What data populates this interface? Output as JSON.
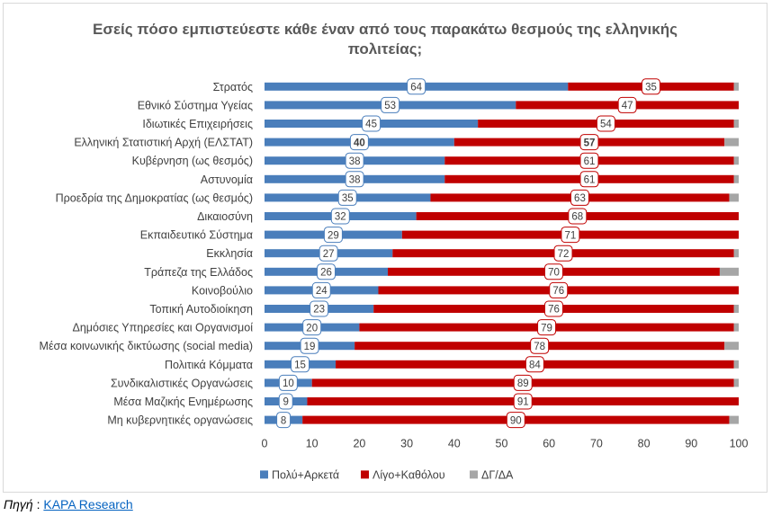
{
  "chart_data": {
    "type": "bar",
    "orientation": "horizontal",
    "stacked": true,
    "title": "Εσείς πόσο εμπιστεύεστε κάθε έναν από τους παρακάτω θεσμούς της ελληνικής πολιτείας;",
    "title_lines": [
      "Εσείς πόσο εμπιστεύεστε κάθε έναν από τους παρακάτω θεσμούς της ελληνικής",
      "πολιτείας;"
    ],
    "xlim": [
      0,
      100
    ],
    "xticks": [
      0,
      10,
      20,
      30,
      40,
      50,
      60,
      70,
      80,
      90,
      100
    ],
    "grid": false,
    "legend_position": "bottom",
    "categories": [
      "Στρατός",
      "Εθνικό Σύστημα Υγείας",
      "Ιδιωτικές Επιχειρήσεις",
      "Ελληνική Στατιστική Αρχή (ΕΛΣΤΑΤ)",
      "Κυβέρνηση (ως θεσμός)",
      "Αστυνομία",
      "Προεδρία της Δημοκρατίας (ως θεσμός)",
      "Δικαιοσύνη",
      "Εκπαιδευτικό Σύστημα",
      "Εκκλησία",
      "Τράπεζα της Ελλάδος",
      "Κοινοβούλιο",
      "Τοπική Αυτοδιοίκηση",
      "Δημόσιες Υπηρεσίες και Οργανισμοί",
      "Μέσα κοινωνικής δικτύωσης (social media)",
      "Πολιτικά Κόμματα",
      "Συνδικαλιστικές Οργανώσεις",
      "Μέσα Μαζικής Ενημέρωσης",
      "Μη κυβερνητικές οργανώσεις"
    ],
    "highlighted_category_index": 3,
    "series": [
      {
        "name": "Πολύ+Αρκετά",
        "color": "#4a7ebb",
        "values": [
          64,
          53,
          45,
          40,
          38,
          38,
          35,
          32,
          29,
          27,
          26,
          24,
          23,
          20,
          19,
          15,
          10,
          9,
          8
        ],
        "labeled": true
      },
      {
        "name": "Λίγο+Καθόλου",
        "color": "#c00000",
        "values": [
          35,
          47,
          54,
          57,
          61,
          61,
          63,
          68,
          71,
          72,
          70,
          76,
          76,
          79,
          78,
          84,
          89,
          91,
          90
        ],
        "labeled": true
      },
      {
        "name": "ΔΓ/ΔΑ",
        "color": "#a6a6a6",
        "values": [
          1,
          0,
          1,
          3,
          1,
          1,
          2,
          0,
          0,
          1,
          4,
          0,
          1,
          1,
          3,
          1,
          1,
          0,
          2
        ],
        "labeled": false
      }
    ]
  },
  "source": {
    "label": "Πηγή",
    "separator": " : ",
    "link_text": "KAPA Research"
  }
}
